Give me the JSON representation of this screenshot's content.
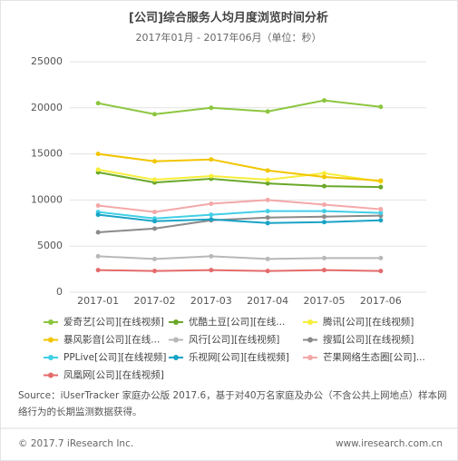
{
  "chart_data": {
    "type": "line",
    "title": "[公司]综合服务人均月度浏览时间分析",
    "subtitle": "2017年01月 - 2017年06月（单位：秒）",
    "categories": [
      "2017-01",
      "2017-02",
      "2017-03",
      "2017-04",
      "2017-05",
      "2017-06"
    ],
    "ylim": [
      0,
      25000
    ],
    "yticks": [
      0,
      5000,
      10000,
      15000,
      20000,
      25000
    ],
    "grid": true,
    "series": [
      {
        "name": "爱奇艺[公司][在线视频]",
        "color": "#8cc63f",
        "values": [
          20500,
          19300,
          20000,
          19600,
          20800,
          20100
        ]
      },
      {
        "name": "优酷土豆[公司][在线...",
        "color": "#6aa82a",
        "values": [
          13000,
          11900,
          12300,
          11800,
          11500,
          11400
        ]
      },
      {
        "name": "腾讯[公司][在线视频]",
        "color": "#f7ee3a",
        "values": [
          13300,
          12200,
          12600,
          12200,
          12900,
          12000
        ]
      },
      {
        "name": "暴风影音[公司][在线...",
        "color": "#f2c500",
        "values": [
          15000,
          14200,
          14400,
          13200,
          12500,
          12100
        ]
      },
      {
        "name": "风行[公司][在线视频]",
        "color": "#b8b8b8",
        "values": [
          3900,
          3600,
          3900,
          3600,
          3700,
          3700
        ]
      },
      {
        "name": "搜狐[公司][在线视频]",
        "color": "#8a8a8a",
        "values": [
          6500,
          6900,
          7800,
          8100,
          8200,
          8300
        ]
      },
      {
        "name": "PPLive[公司][在线视频]",
        "color": "#41cfe6",
        "values": [
          8700,
          8000,
          8400,
          8800,
          8800,
          8600
        ]
      },
      {
        "name": "乐视网[公司][在线视频]",
        "color": "#1aa3c6",
        "values": [
          8400,
          7700,
          7900,
          7500,
          7600,
          7800
        ]
      },
      {
        "name": "芒果网络生态圈[公司]...",
        "color": "#f3a8a8",
        "values": [
          9400,
          8700,
          9600,
          10000,
          9500,
          9000
        ]
      },
      {
        "name": "凤凰网[公司][在线视频]",
        "color": "#e46a6a",
        "values": [
          2400,
          2300,
          2400,
          2300,
          2400,
          2300
        ]
      }
    ]
  },
  "source": "Source：iUserTracker 家庭办公版 2017.6，基于对40万名家庭及办公（不含公共上网地点）样本网",
  "source_line2": "络行为的长期监测数据获得。",
  "footer": {
    "copyright": "© 2017.7 iResearch Inc.",
    "website": "www.iresearch.com.cn"
  }
}
